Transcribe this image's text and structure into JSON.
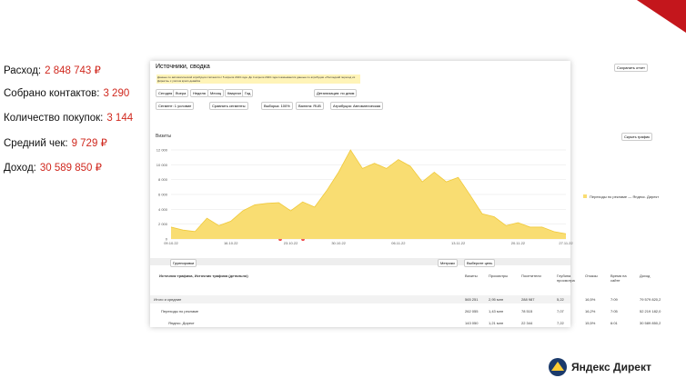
{
  "stats": [
    {
      "label": "Расход:",
      "value": "2 848 743 ₽"
    },
    {
      "label": "Собрано контактов:",
      "value": "3 290"
    },
    {
      "label": "Количество покупок:",
      "value": "3 144"
    },
    {
      "label": "Средний чек:",
      "value": "9 729 ₽"
    },
    {
      "label": "Доход:",
      "value": "30 589 850 ₽"
    }
  ],
  "screen": {
    "title": "Источники, сводка",
    "notice": "Данные по автоматической атрибуции считаются с 5 апреля 2023 года. До 4 апреля 2023 года показываются данные по атрибуции «Последний переход из Директа» с учётом кросс-девайса",
    "periods": [
      "Сегодня",
      "Вчера",
      "Неделя",
      "Месяц",
      "Квартал",
      "Год"
    ],
    "save": "Сохранить отчет",
    "segment": "Сегмент: 1 условие",
    "compare": "Сравнить сегменты",
    "sample": "Выборка: 100%",
    "currency": "Валюта: RUB",
    "attribution": "Атрибуция: Автоматическая",
    "group_by": "Детализация: по дням",
    "metric": "Визиты",
    "hide": "Скрыть график",
    "groupings": "Группировки",
    "metrics_btn": "Метрики",
    "goal": "Выберите цель"
  },
  "chart": {
    "type": "area",
    "color": "#f9dd72",
    "series_name": "Переходы по рекламе — Яндекс. Директ",
    "categories": [
      "09.10.22",
      null,
      null,
      null,
      null,
      "16.10.22",
      null,
      null,
      null,
      null,
      "23.10.22",
      null,
      null,
      null,
      "30.10.22",
      null,
      null,
      null,
      null,
      "06.11.22",
      null,
      null,
      null,
      null,
      "13.11.22",
      null,
      null,
      null,
      null,
      "20.11.22",
      null,
      null,
      null,
      "27.11.22"
    ],
    "values": [
      1600,
      1200,
      1000,
      2800,
      1800,
      2400,
      3800,
      4600,
      4800,
      4900,
      3800,
      5000,
      4300,
      6500,
      9000,
      12000,
      9500,
      10200,
      9500,
      10700,
      9800,
      7700,
      9000,
      7700,
      8300,
      5900,
      3400,
      3000,
      1800,
      2200,
      1600,
      1600,
      1000,
      700
    ],
    "ylim": [
      0,
      12000
    ],
    "yticks": [
      0,
      {
        "value": 2000,
        "label": "2 000"
      },
      {
        "value": 4000,
        "label": "4 000"
      },
      {
        "value": 6000,
        "label": "6 000"
      },
      {
        "value": 8000,
        "label": "8 000"
      },
      {
        "value": 10000,
        "label": "10 000"
      },
      {
        "value": 12000,
        "label": "12 000"
      }
    ]
  },
  "table": {
    "columns": [
      "Визиты",
      "Просмотры",
      "Посетители",
      "Глубина просмотра",
      "Отказы",
      "Время на сайте",
      "Доход"
    ],
    "dimension": "Источник трафика, Источник трафика (детально)",
    "rows": [
      [
        "Итого и средние",
        "565 251",
        "2,95 млн",
        "288 987",
        "5,22",
        "16,5%",
        "7:09",
        "79 579 820,2"
      ],
      [
        "Переходы по рекламе",
        "262 055",
        "1,43 млн",
        "78 515",
        "7,07",
        "16,2%",
        "7:05",
        "52 219 182,0"
      ],
      [
        "Яндекс. Директ",
        "143 050",
        "1,21 млн",
        "22 344",
        "7,22",
        "15,5%",
        "6:01",
        "30 589 850,2"
      ]
    ]
  },
  "logo": "Яндекс Директ"
}
